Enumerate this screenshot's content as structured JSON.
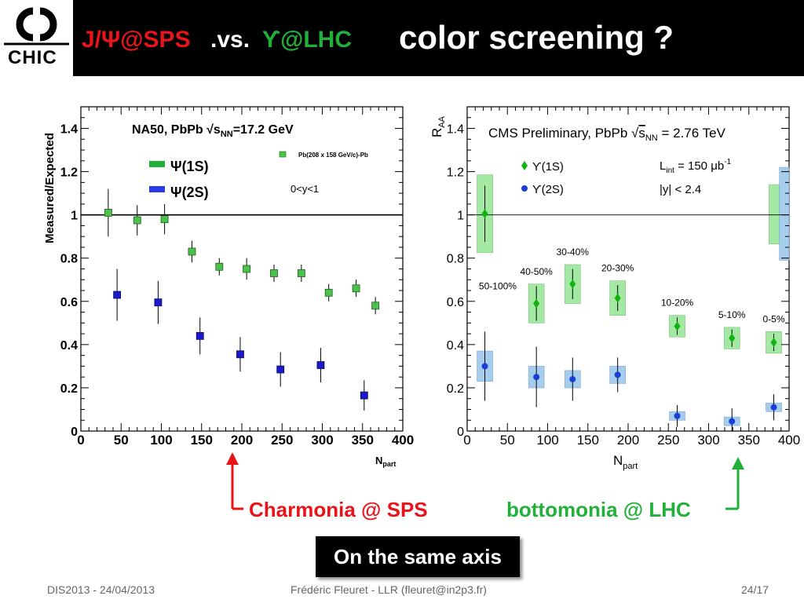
{
  "header": {
    "logo_text": "CHIC",
    "title_part1": "J/Ψ@SPS",
    "title_part2": ".vs.",
    "title_part3": "ϒ@LHC",
    "title_main": "color screening ?"
  },
  "left_chart": {
    "title": "NA50, PbPb √sNN=17.2 GeV",
    "title_pre": "NA50, PbPb √s",
    "title_sub": "NN",
    "title_post": "=17.2 GeV",
    "small_legend": "Pb(208 x 158 GeV/c)-Pb",
    "rapidity": "0<y<1",
    "ylabel": "Measured/Expected",
    "xlabel_main": "N",
    "xlabel_sub": "part"
  },
  "right_chart": {
    "title_pre": "CMS Preliminary, PbPb ",
    "title_rad": "√",
    "title_s": "s",
    "title_sub": "NN",
    "title_post": " = 2.76 TeV",
    "lumi_pre": "L",
    "lumi_sub": "int",
    "lumi_post": " = 150 μb",
    "lumi_sup": "-1",
    "rapidity": "|y| < 2.4",
    "ylabel_main": "R",
    "ylabel_sub": "AA",
    "xlabel_main": "N",
    "xlabel_sub": "part"
  },
  "captions": {
    "left": "Charmonia @ SPS",
    "right": "bottomonia @ LHC",
    "box": "On the same axis"
  },
  "footer": {
    "left": "DIS2013 - 24/04/2013",
    "center": "Frédéric Fleuret - LLR (fleuret@in2p3.fr)",
    "right": "24/17"
  },
  "colors": {
    "red": "#e8141a",
    "green": "#21b13b",
    "jpsi_marker": "#4cc24c",
    "psi2s_marker": "#1a1acc",
    "ups1s_marker": "#13b213",
    "ups2s_marker": "#1a3fd6",
    "ups1s_box": "#a3e8a3",
    "ups2s_box": "#a6cdee"
  },
  "chart_data": [
    {
      "type": "scatter",
      "title": "NA50, PbPb √sNN=17.2 GeV",
      "xlabel": "Npart",
      "ylabel": "Measured/Expected",
      "xlim": [
        0,
        400
      ],
      "ylim": [
        0,
        1.5
      ],
      "xticks": [
        "0",
        "50",
        "100",
        "150",
        "200",
        "250",
        "300",
        "350",
        "400"
      ],
      "yticks": [
        "0",
        "0.2",
        "0.4",
        "0.6",
        "0.8",
        "1",
        "1.2",
        "1.4"
      ],
      "reference_line": 1,
      "series": [
        {
          "name": "Ψ(1S)",
          "x": [
            34,
            70,
            104,
            138,
            172,
            206,
            240,
            274,
            308,
            342,
            366
          ],
          "y": [
            1.01,
            0.975,
            0.98,
            0.83,
            0.76,
            0.75,
            0.73,
            0.73,
            0.64,
            0.66,
            0.58
          ],
          "err": [
            0.11,
            0.07,
            0.07,
            0.05,
            0.04,
            0.05,
            0.04,
            0.04,
            0.04,
            0.04,
            0.04
          ]
        },
        {
          "name": "Ψ(2S)",
          "x": [
            45,
            96,
            148,
            198,
            248,
            298,
            352
          ],
          "y": [
            0.63,
            0.595,
            0.44,
            0.355,
            0.285,
            0.305,
            0.165
          ],
          "err": [
            0.12,
            0.1,
            0.085,
            0.08,
            0.08,
            0.08,
            0.07
          ]
        }
      ]
    },
    {
      "type": "scatter",
      "title": "CMS Preliminary, PbPb √sNN = 2.76 TeV",
      "xlabel": "Npart",
      "ylabel": "RAA",
      "xlim": [
        0,
        400
      ],
      "ylim": [
        0,
        1.5
      ],
      "xticks": [
        "0",
        "50",
        "100",
        "150",
        "200",
        "250",
        "300",
        "350",
        "400"
      ],
      "yticks": [
        "0",
        "0.2",
        "0.4",
        "0.6",
        "0.8",
        "1",
        "1.2",
        "1.4"
      ],
      "reference_line": 1,
      "centrality_labels": [
        "50-100%",
        "40-50%",
        "30-40%",
        "20-30%",
        "10-20%",
        "5-10%",
        "0-5%"
      ],
      "series": [
        {
          "name": "ϒ(1S)",
          "x": [
            22,
            86,
            131,
            187,
            261,
            329,
            381
          ],
          "y": [
            1.005,
            0.59,
            0.68,
            0.615,
            0.485,
            0.43,
            0.41
          ],
          "err": [
            0.13,
            0.08,
            0.07,
            0.06,
            0.04,
            0.04,
            0.04
          ],
          "syst": [
            0.18,
            0.09,
            0.09,
            0.08,
            0.05,
            0.05,
            0.05
          ]
        },
        {
          "name": "ϒ(2S)",
          "x": [
            22,
            86,
            131,
            187,
            261,
            329,
            381
          ],
          "y": [
            0.3,
            0.25,
            0.24,
            0.26,
            0.07,
            0.045,
            0.11
          ],
          "err": [
            0.16,
            0.14,
            0.1,
            0.08,
            0.05,
            0.06,
            0.06
          ],
          "syst": [
            0.07,
            0.05,
            0.04,
            0.04,
            0.02,
            0.02,
            0.02
          ]
        }
      ],
      "global_syst_boxes": [
        {
          "series": "ϒ(1S)",
          "ylim": [
            0.865,
            1.14
          ]
        },
        {
          "series": "ϒ(2S)",
          "ylim": [
            0.79,
            1.22
          ]
        }
      ]
    }
  ]
}
